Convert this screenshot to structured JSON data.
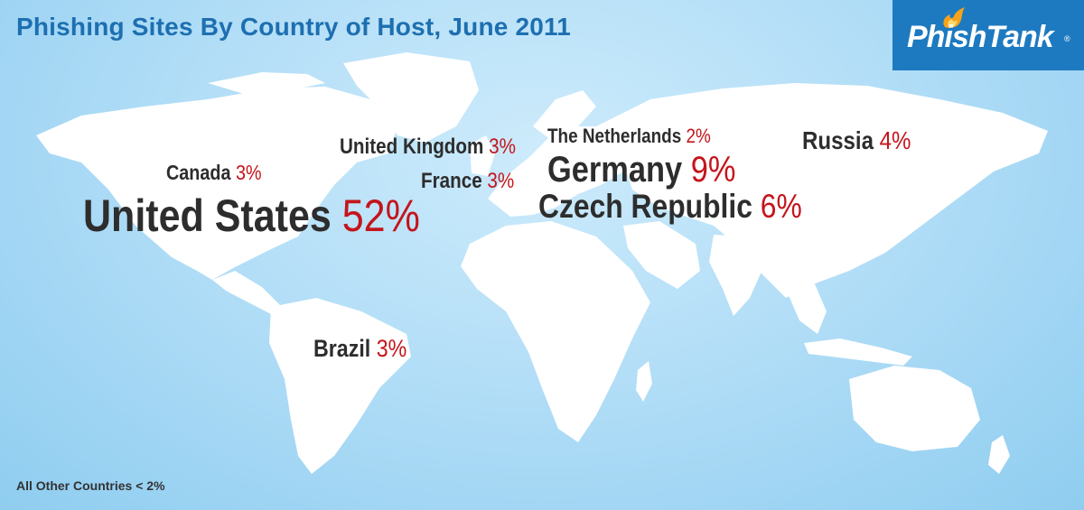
{
  "title": "Phishing Sites By Country of Host, June 2011",
  "logo": {
    "text": "PhishTank",
    "registered": "®",
    "icon": "flame-icon"
  },
  "colors": {
    "ocean": "#b3def7",
    "land": "#ffffff",
    "title": "#1d6fb0",
    "label": "#2d2d2d",
    "percent": "#c4151b",
    "logo_bg": "#1d7ac0"
  },
  "countries": {
    "united_states": {
      "name": "United States",
      "value": "52%"
    },
    "germany": {
      "name": "Germany",
      "value": "9%"
    },
    "czech_republic": {
      "name": "Czech Republic",
      "value": "6%"
    },
    "russia": {
      "name": "Russia",
      "value": "4%"
    },
    "canada": {
      "name": "Canada",
      "value": "3%"
    },
    "united_kingdom": {
      "name": "United Kingdom",
      "value": "3%"
    },
    "france": {
      "name": "France",
      "value": "3%"
    },
    "brazil": {
      "name": "Brazil",
      "value": "3%"
    },
    "netherlands": {
      "name": "The Netherlands",
      "value": "2%"
    }
  },
  "footnote": "All Other Countries < 2%"
}
